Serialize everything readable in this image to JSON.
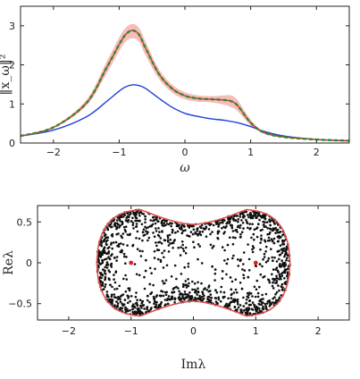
{
  "chart_data": [
    {
      "type": "line",
      "xlabel": "ω",
      "ylabel": "‖x_ω‖²",
      "xlim": [
        -2.5,
        2.5
      ],
      "ylim": [
        0,
        3.5
      ],
      "xticks": [
        "-2",
        "-1",
        "0",
        "1",
        "2"
      ],
      "yticks": [
        "0",
        "1",
        "2",
        "3"
      ],
      "band": {
        "color": "#f4a6a6",
        "x": [
          -2.5,
          -2.0,
          -1.5,
          -1.2,
          -1.0,
          -0.9,
          -0.8,
          -0.7,
          -0.6,
          -0.4,
          -0.2,
          0.0,
          0.2,
          0.4,
          0.6,
          0.7,
          0.8,
          1.0,
          1.2,
          1.5,
          2.0,
          2.5
        ],
        "lower": [
          0.17,
          0.38,
          0.95,
          1.75,
          2.35,
          2.6,
          2.68,
          2.6,
          2.25,
          1.65,
          1.3,
          1.12,
          1.06,
          1.04,
          0.98,
          0.92,
          0.82,
          0.45,
          0.24,
          0.14,
          0.08,
          0.05
        ],
        "upper": [
          0.19,
          0.42,
          1.1,
          2.05,
          2.7,
          2.95,
          3.05,
          2.95,
          2.6,
          1.9,
          1.5,
          1.3,
          1.22,
          1.2,
          1.22,
          1.22,
          1.1,
          0.6,
          0.3,
          0.17,
          0.1,
          0.07
        ]
      },
      "series": [
        {
          "color": "#1f3fd8",
          "style": "solid",
          "x": [
            -2.5,
            -2.0,
            -1.5,
            -1.2,
            -1.0,
            -0.9,
            -0.8,
            -0.7,
            -0.6,
            -0.4,
            -0.2,
            0.0,
            0.2,
            0.4,
            0.6,
            0.8,
            1.0,
            1.2,
            1.5,
            2.0,
            2.5
          ],
          "y": [
            0.18,
            0.33,
            0.67,
            1.05,
            1.33,
            1.44,
            1.49,
            1.47,
            1.4,
            1.15,
            0.92,
            0.76,
            0.68,
            0.62,
            0.58,
            0.52,
            0.42,
            0.3,
            0.18,
            0.09,
            0.05
          ]
        },
        {
          "color": "#d03a2e",
          "style": "solid",
          "x": [
            -2.5,
            -2.0,
            -1.5,
            -1.2,
            -1.0,
            -0.9,
            -0.8,
            -0.7,
            -0.6,
            -0.4,
            -0.2,
            0.0,
            0.2,
            0.4,
            0.6,
            0.7,
            0.8,
            1.0,
            1.2,
            1.5,
            2.0,
            2.5
          ],
          "y": [
            0.18,
            0.4,
            1.02,
            1.9,
            2.52,
            2.78,
            2.88,
            2.78,
            2.44,
            1.78,
            1.4,
            1.21,
            1.14,
            1.12,
            1.1,
            1.07,
            0.96,
            0.52,
            0.27,
            0.155,
            0.09,
            0.06
          ]
        },
        {
          "color": "#2e8b2e",
          "style": "dashed",
          "x": [
            -2.5,
            -2.0,
            -1.5,
            -1.2,
            -1.0,
            -0.9,
            -0.8,
            -0.7,
            -0.6,
            -0.4,
            -0.2,
            0.0,
            0.2,
            0.4,
            0.6,
            0.7,
            0.8,
            1.0,
            1.2,
            1.5,
            2.0,
            2.5
          ],
          "y": [
            0.18,
            0.4,
            1.02,
            1.9,
            2.52,
            2.78,
            2.88,
            2.78,
            2.44,
            1.78,
            1.4,
            1.21,
            1.14,
            1.12,
            1.1,
            1.07,
            0.96,
            0.52,
            0.27,
            0.155,
            0.09,
            0.06
          ]
        }
      ]
    },
    {
      "type": "scatter",
      "xlabel": "Imλ",
      "ylabel": "Reλ",
      "xlim": [
        -2.5,
        2.5
      ],
      "ylim": [
        -0.7,
        0.7
      ],
      "xticks": [
        "-2",
        "-1",
        "0",
        "1",
        "2"
      ],
      "yticks": [
        "-0.5",
        "0",
        "0.5"
      ],
      "points_description_count": 1500,
      "point_color": "#111111",
      "boundary": {
        "color": "#e05050",
        "outer_half_width": 1.55,
        "lobe_height": 0.66,
        "waist_height": 0.47
      },
      "highlight_points": {
        "color": "#e02020",
        "x": [
          -1.0,
          1.0
        ],
        "y": [
          0.0,
          0.0
        ]
      }
    }
  ]
}
